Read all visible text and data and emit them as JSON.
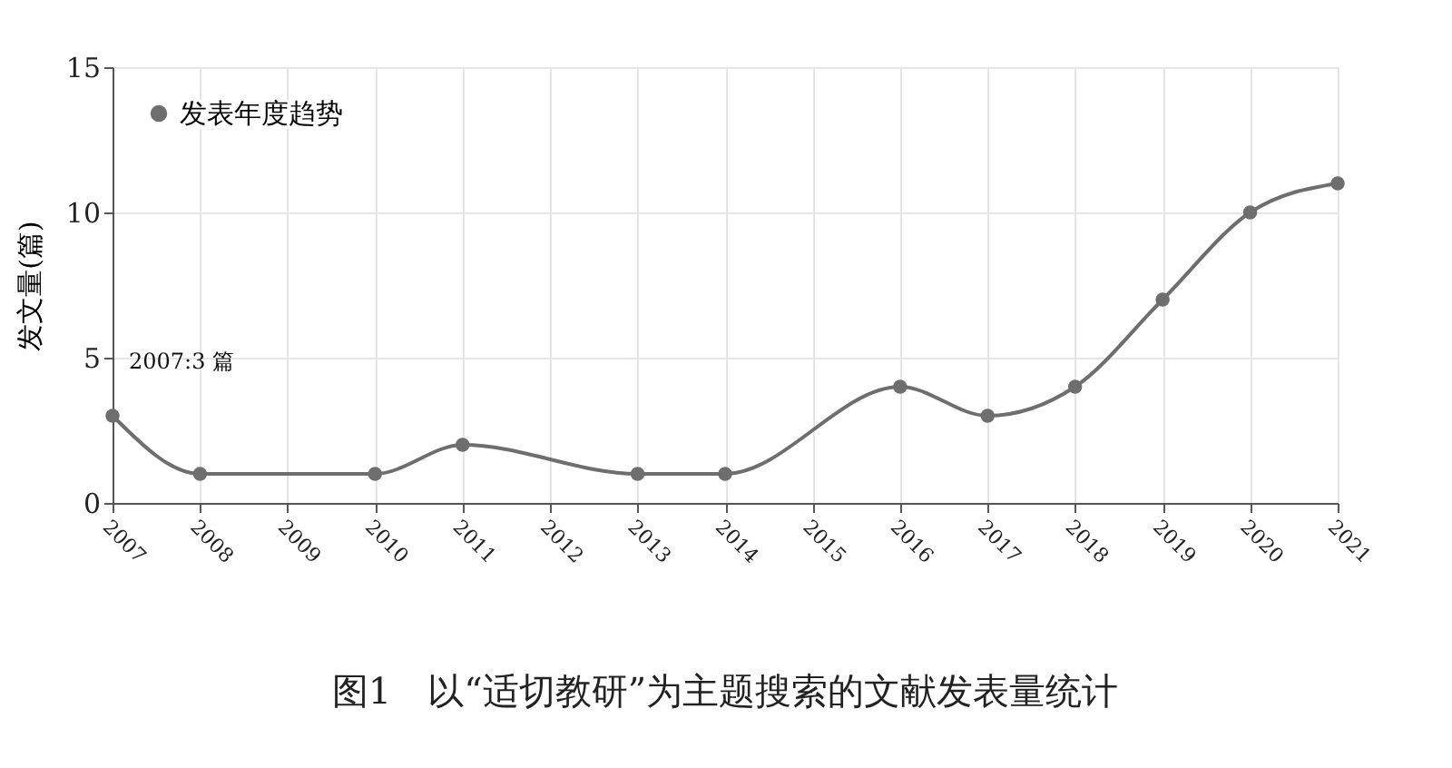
{
  "chart_data": {
    "type": "line",
    "ylabel": "发文量(篇)",
    "x": [
      2007,
      2008,
      2010,
      2011,
      2013,
      2014,
      2016,
      2017,
      2018,
      2019,
      2020,
      2021
    ],
    "series": [
      {
        "name": "发表年度趋势",
        "color": "#6e6e6e",
        "values": [
          3,
          1,
          1,
          2,
          1,
          1,
          4,
          3,
          4,
          7,
          10,
          11
        ]
      }
    ],
    "xlim": [
      2007,
      2021
    ],
    "xticks": [
      2007,
      2008,
      2009,
      2010,
      2011,
      2012,
      2013,
      2014,
      2015,
      2016,
      2017,
      2018,
      2019,
      2020,
      2021
    ],
    "ylim": [
      0,
      15
    ],
    "yticks": [
      0,
      5,
      10,
      15
    ],
    "grid": true,
    "legend": "top left",
    "marker": "circle",
    "annotations": [
      {
        "text": "2007:3 篇",
        "x": 2007,
        "y": 3
      },
      "图1　以“适切教研”为主题搜索的文献发表量统计"
    ]
  }
}
